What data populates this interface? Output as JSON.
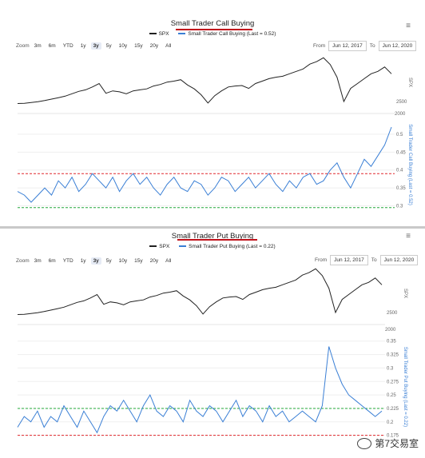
{
  "charts": [
    {
      "title": "Small Trader Call Buying",
      "legend_spx": "SPX",
      "legend_series": "Small Trader Call Buying (Last = 0.52)",
      "zoom_label": "Zoom",
      "zoom_options": [
        "3m",
        "6m",
        "YTD",
        "1y",
        "3y",
        "5y",
        "10y",
        "15y",
        "20y",
        "All"
      ],
      "zoom_active": "3y",
      "from_label": "From",
      "from_value": "Jun 12, 2017",
      "to_label": "To",
      "to_value": "Jun 12, 2020",
      "menu_icon": "hamburger-menu-icon",
      "top_axis_label": "SPX",
      "top_ticks": [
        "2500"
      ],
      "bottom_axis_label": "Small Trader Call Buying (Last = 0.52)",
      "bottom_ticks": [
        "2000",
        "0.5",
        "0.45",
        "0.4",
        "0.35",
        "0.3"
      ]
    },
    {
      "title": "Small Trader Put Buying",
      "legend_spx": "SPX",
      "legend_series": "Small Trader Put Buying (Last = 0.22)",
      "zoom_label": "Zoom",
      "zoom_options": [
        "3m",
        "6m",
        "YTD",
        "1y",
        "3y",
        "5y",
        "10y",
        "15y",
        "20y",
        "All"
      ],
      "zoom_active": "3y",
      "from_label": "From",
      "from_value": "Jun 12, 2017",
      "to_label": "To",
      "to_value": "Jun 12, 2020",
      "menu_icon": "hamburger-menu-icon",
      "top_axis_label": "SPX",
      "top_ticks": [
        "2500"
      ],
      "bottom_axis_label": "Small Trader Put Buying (Last = 0.22)",
      "bottom_ticks": [
        "2000",
        "0.35",
        "0.325",
        "0.3",
        "0.275",
        "0.25",
        "0.225",
        "0.2",
        "0.175"
      ]
    }
  ],
  "watermark": "第7交易室",
  "colors": {
    "spx": "#222222",
    "series": "#3a7fd5",
    "red": "#e0262b",
    "green": "#23a83a",
    "underline": "#c0121b"
  },
  "chart_data": [
    {
      "type": "line",
      "title": "Small Trader Call Buying",
      "series": [
        {
          "name": "SPX",
          "axis": "top",
          "values": [
            2440,
            2445,
            2460,
            2475,
            2500,
            2530,
            2560,
            2590,
            2640,
            2690,
            2720,
            2780,
            2850,
            2650,
            2700,
            2680,
            2640,
            2700,
            2720,
            2740,
            2800,
            2830,
            2880,
            2900,
            2930,
            2820,
            2740,
            2620,
            2450,
            2600,
            2700,
            2780,
            2800,
            2810,
            2750,
            2850,
            2900,
            2950,
            2980,
            3000,
            3050,
            3100,
            3150,
            3250,
            3300,
            3380,
            3240,
            2980,
            2480,
            2750,
            2850,
            2950,
            3050,
            3100,
            3190,
            3050
          ]
        },
        {
          "name": "Small Trader Call Buying (Last = 0.52)",
          "axis": "bottom",
          "values": [
            0.34,
            0.33,
            0.31,
            0.33,
            0.35,
            0.33,
            0.37,
            0.35,
            0.38,
            0.34,
            0.36,
            0.39,
            0.37,
            0.35,
            0.38,
            0.34,
            0.37,
            0.39,
            0.36,
            0.38,
            0.35,
            0.33,
            0.36,
            0.38,
            0.35,
            0.34,
            0.37,
            0.36,
            0.33,
            0.35,
            0.38,
            0.37,
            0.34,
            0.36,
            0.38,
            0.35,
            0.37,
            0.39,
            0.36,
            0.34,
            0.37,
            0.35,
            0.38,
            0.39,
            0.36,
            0.37,
            0.4,
            0.42,
            0.38,
            0.35,
            0.39,
            0.43,
            0.41,
            0.44,
            0.47,
            0.52
          ]
        }
      ],
      "reference_lines": [
        {
          "y": 0.39,
          "color": "red"
        },
        {
          "y": 0.295,
          "color": "green"
        }
      ],
      "ylim": [
        0.29,
        0.54
      ]
    },
    {
      "type": "line",
      "title": "Small Trader Put Buying",
      "series": [
        {
          "name": "SPX",
          "axis": "top",
          "values": [
            2440,
            2445,
            2460,
            2475,
            2500,
            2530,
            2560,
            2590,
            2640,
            2690,
            2720,
            2780,
            2850,
            2650,
            2700,
            2680,
            2640,
            2700,
            2720,
            2740,
            2800,
            2830,
            2880,
            2900,
            2930,
            2820,
            2740,
            2620,
            2450,
            2600,
            2700,
            2780,
            2800,
            2810,
            2750,
            2850,
            2900,
            2950,
            2980,
            3000,
            3050,
            3100,
            3150,
            3250,
            3300,
            3380,
            3240,
            2980,
            2480,
            2750,
            2850,
            2950,
            3050,
            3100,
            3190,
            3050
          ]
        },
        {
          "name": "Small Trader Put Buying (Last = 0.22)",
          "axis": "bottom",
          "values": [
            0.19,
            0.21,
            0.2,
            0.22,
            0.19,
            0.21,
            0.2,
            0.23,
            0.21,
            0.19,
            0.22,
            0.2,
            0.18,
            0.21,
            0.23,
            0.22,
            0.24,
            0.22,
            0.2,
            0.23,
            0.25,
            0.22,
            0.21,
            0.23,
            0.22,
            0.2,
            0.24,
            0.22,
            0.21,
            0.23,
            0.22,
            0.2,
            0.22,
            0.24,
            0.21,
            0.23,
            0.22,
            0.2,
            0.23,
            0.21,
            0.22,
            0.2,
            0.21,
            0.22,
            0.21,
            0.2,
            0.23,
            0.34,
            0.3,
            0.27,
            0.25,
            0.24,
            0.23,
            0.22,
            0.21,
            0.22
          ]
        }
      ],
      "reference_lines": [
        {
          "y": 0.225,
          "color": "green"
        },
        {
          "y": 0.175,
          "color": "red"
        }
      ],
      "ylim": [
        0.17,
        0.36
      ]
    }
  ]
}
